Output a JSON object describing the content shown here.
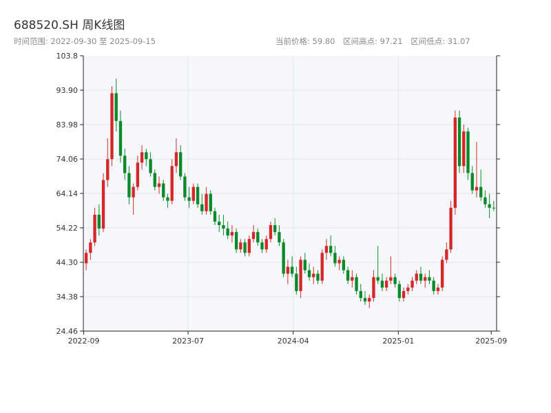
{
  "header": {
    "title": "688520.SH 周K线图",
    "range_label": "时间范围: 2022-09-30 至 2025-09-15",
    "current_price": "当前价格: 59.80",
    "high": "区间高点: 97.21",
    "low": "区间低点: 31.07"
  },
  "colors": {
    "up": "#d62728",
    "down": "#0a8a2a",
    "plot_bg": "#f5f7fa",
    "grid": "#e3e6ea",
    "axis": "#222222"
  },
  "chart_data": {
    "type": "candlestick",
    "title": "688520.SH 周K线图",
    "xlabel": "",
    "ylabel": "",
    "ylim": [
      24.46,
      103.8
    ],
    "y_ticks": [
      "103.8",
      "93.90",
      "83.98",
      "74.06",
      "64.14",
      "54.22",
      "44.30",
      "34.38",
      "24.46"
    ],
    "x_ticks": [
      "2022-09",
      "2023-07",
      "2024-04",
      "2025-01",
      "2025-09"
    ],
    "grid": true,
    "start_date": "2022-09-30",
    "end_date": "2025-09-15",
    "candles": [
      {
        "o": 44,
        "h": 48,
        "l": 42,
        "c": 47
      },
      {
        "o": 47,
        "h": 51,
        "l": 45,
        "c": 50
      },
      {
        "o": 50,
        "h": 60,
        "l": 49,
        "c": 58
      },
      {
        "o": 58,
        "h": 61,
        "l": 52,
        "c": 54
      },
      {
        "o": 54,
        "h": 70,
        "l": 53,
        "c": 68
      },
      {
        "o": 68,
        "h": 80,
        "l": 66,
        "c": 74
      },
      {
        "o": 74,
        "h": 95,
        "l": 72,
        "c": 93
      },
      {
        "o": 93,
        "h": 97.2,
        "l": 82,
        "c": 85
      },
      {
        "o": 85,
        "h": 88,
        "l": 73,
        "c": 75
      },
      {
        "o": 75,
        "h": 77,
        "l": 68,
        "c": 70
      },
      {
        "o": 70,
        "h": 72,
        "l": 61,
        "c": 63
      },
      {
        "o": 63,
        "h": 67,
        "l": 58,
        "c": 66
      },
      {
        "o": 66,
        "h": 75,
        "l": 65,
        "c": 73
      },
      {
        "o": 73,
        "h": 78,
        "l": 71,
        "c": 76
      },
      {
        "o": 76,
        "h": 77,
        "l": 72,
        "c": 74
      },
      {
        "o": 74,
        "h": 76,
        "l": 69,
        "c": 70
      },
      {
        "o": 70,
        "h": 71,
        "l": 65,
        "c": 66
      },
      {
        "o": 66,
        "h": 69,
        "l": 64,
        "c": 67
      },
      {
        "o": 67,
        "h": 68,
        "l": 62,
        "c": 63
      },
      {
        "o": 63,
        "h": 64,
        "l": 60,
        "c": 62
      },
      {
        "o": 62,
        "h": 74,
        "l": 61,
        "c": 72
      },
      {
        "o": 72,
        "h": 80,
        "l": 70,
        "c": 76
      },
      {
        "o": 76,
        "h": 78,
        "l": 68,
        "c": 69
      },
      {
        "o": 69,
        "h": 70,
        "l": 62,
        "c": 63
      },
      {
        "o": 63,
        "h": 66,
        "l": 60,
        "c": 62
      },
      {
        "o": 62,
        "h": 67,
        "l": 61,
        "c": 66
      },
      {
        "o": 66,
        "h": 67,
        "l": 60,
        "c": 61
      },
      {
        "o": 61,
        "h": 64,
        "l": 58,
        "c": 59
      },
      {
        "o": 59,
        "h": 66,
        "l": 58,
        "c": 64
      },
      {
        "o": 64,
        "h": 65,
        "l": 58,
        "c": 59
      },
      {
        "o": 59,
        "h": 60,
        "l": 55,
        "c": 56
      },
      {
        "o": 56,
        "h": 58,
        "l": 53,
        "c": 55
      },
      {
        "o": 55,
        "h": 58,
        "l": 52,
        "c": 54
      },
      {
        "o": 54,
        "h": 56,
        "l": 51,
        "c": 52
      },
      {
        "o": 52,
        "h": 55,
        "l": 50,
        "c": 53
      },
      {
        "o": 53,
        "h": 54,
        "l": 47,
        "c": 48
      },
      {
        "o": 48,
        "h": 51,
        "l": 47,
        "c": 50
      },
      {
        "o": 50,
        "h": 51,
        "l": 46,
        "c": 47
      },
      {
        "o": 47,
        "h": 52,
        "l": 46,
        "c": 51
      },
      {
        "o": 51,
        "h": 55,
        "l": 50,
        "c": 53
      },
      {
        "o": 53,
        "h": 54,
        "l": 49,
        "c": 50
      },
      {
        "o": 50,
        "h": 51,
        "l": 47,
        "c": 48
      },
      {
        "o": 48,
        "h": 52,
        "l": 47,
        "c": 51
      },
      {
        "o": 51,
        "h": 56,
        "l": 50,
        "c": 55
      },
      {
        "o": 55,
        "h": 57,
        "l": 52,
        "c": 53
      },
      {
        "o": 53,
        "h": 55,
        "l": 49,
        "c": 50
      },
      {
        "o": 50,
        "h": 51,
        "l": 40,
        "c": 41
      },
      {
        "o": 41,
        "h": 45,
        "l": 38,
        "c": 43
      },
      {
        "o": 43,
        "h": 46,
        "l": 40,
        "c": 41
      },
      {
        "o": 41,
        "h": 43,
        "l": 35,
        "c": 36
      },
      {
        "o": 36,
        "h": 46,
        "l": 34,
        "c": 45
      },
      {
        "o": 45,
        "h": 47,
        "l": 41,
        "c": 42
      },
      {
        "o": 42,
        "h": 44,
        "l": 39,
        "c": 40
      },
      {
        "o": 40,
        "h": 43,
        "l": 38,
        "c": 41
      },
      {
        "o": 41,
        "h": 42,
        "l": 38,
        "c": 39
      },
      {
        "o": 39,
        "h": 48,
        "l": 38,
        "c": 47
      },
      {
        "o": 47,
        "h": 51,
        "l": 45,
        "c": 49
      },
      {
        "o": 49,
        "h": 52,
        "l": 46,
        "c": 47
      },
      {
        "o": 47,
        "h": 49,
        "l": 43,
        "c": 44
      },
      {
        "o": 44,
        "h": 46,
        "l": 42,
        "c": 45
      },
      {
        "o": 45,
        "h": 46,
        "l": 41,
        "c": 42
      },
      {
        "o": 42,
        "h": 43,
        "l": 38,
        "c": 39
      },
      {
        "o": 39,
        "h": 42,
        "l": 37,
        "c": 40
      },
      {
        "o": 40,
        "h": 41,
        "l": 35,
        "c": 36
      },
      {
        "o": 36,
        "h": 38,
        "l": 33,
        "c": 34
      },
      {
        "o": 34,
        "h": 36,
        "l": 32,
        "c": 33
      },
      {
        "o": 33,
        "h": 35,
        "l": 31.1,
        "c": 34
      },
      {
        "o": 34,
        "h": 42,
        "l": 33,
        "c": 40
      },
      {
        "o": 40,
        "h": 49,
        "l": 38,
        "c": 39
      },
      {
        "o": 39,
        "h": 41,
        "l": 36,
        "c": 37
      },
      {
        "o": 37,
        "h": 40,
        "l": 36,
        "c": 39
      },
      {
        "o": 39,
        "h": 46,
        "l": 38,
        "c": 40
      },
      {
        "o": 40,
        "h": 41,
        "l": 37,
        "c": 38
      },
      {
        "o": 38,
        "h": 39,
        "l": 33,
        "c": 34
      },
      {
        "o": 34,
        "h": 37,
        "l": 33,
        "c": 36
      },
      {
        "o": 36,
        "h": 38,
        "l": 35,
        "c": 37
      },
      {
        "o": 37,
        "h": 40,
        "l": 36,
        "c": 39
      },
      {
        "o": 39,
        "h": 42,
        "l": 38,
        "c": 41
      },
      {
        "o": 41,
        "h": 43,
        "l": 38,
        "c": 39
      },
      {
        "o": 39,
        "h": 41,
        "l": 37,
        "c": 40
      },
      {
        "o": 40,
        "h": 42,
        "l": 38,
        "c": 39
      },
      {
        "o": 39,
        "h": 40,
        "l": 35,
        "c": 36
      },
      {
        "o": 36,
        "h": 38,
        "l": 35,
        "c": 37
      },
      {
        "o": 37,
        "h": 46,
        "l": 36,
        "c": 45
      },
      {
        "o": 45,
        "h": 50,
        "l": 44,
        "c": 48
      },
      {
        "o": 48,
        "h": 62,
        "l": 47,
        "c": 60
      },
      {
        "o": 60,
        "h": 88,
        "l": 58,
        "c": 86
      },
      {
        "o": 86,
        "h": 88,
        "l": 70,
        "c": 72
      },
      {
        "o": 72,
        "h": 84,
        "l": 70,
        "c": 82
      },
      {
        "o": 82,
        "h": 83,
        "l": 68,
        "c": 70
      },
      {
        "o": 70,
        "h": 72,
        "l": 64,
        "c": 65
      },
      {
        "o": 65,
        "h": 79,
        "l": 63,
        "c": 66
      },
      {
        "o": 66,
        "h": 71,
        "l": 62,
        "c": 63
      },
      {
        "o": 63,
        "h": 65,
        "l": 60,
        "c": 61
      },
      {
        "o": 61,
        "h": 64,
        "l": 57,
        "c": 60
      },
      {
        "o": 60,
        "h": 62,
        "l": 59,
        "c": 59.8
      }
    ]
  }
}
